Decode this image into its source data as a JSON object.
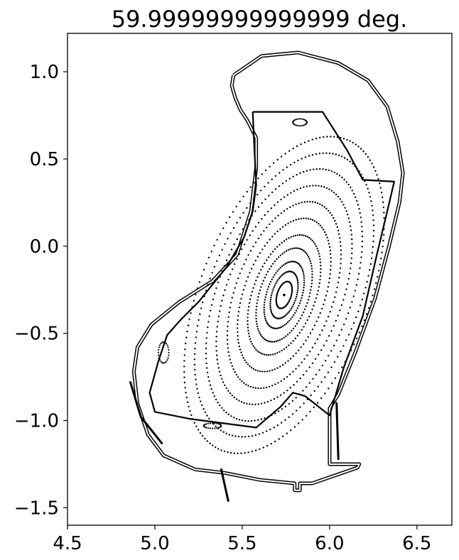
{
  "chart_data": {
    "type": "scatter",
    "title": "59.99999999999999 deg.",
    "xlabel": "",
    "ylabel": "",
    "xlim": [
      4.5,
      6.7
    ],
    "ylim": [
      -1.6,
      1.22
    ],
    "grid": false,
    "legend": "none",
    "x_ticks": [
      {
        "value": 4.5,
        "label": "4.5"
      },
      {
        "value": 5.0,
        "label": "5.0"
      },
      {
        "value": 5.5,
        "label": "5.5"
      },
      {
        "value": 6.0,
        "label": "6.0"
      },
      {
        "value": 6.5,
        "label": "6.5"
      }
    ],
    "y_ticks": [
      {
        "value": 1.0,
        "label": "1.0"
      },
      {
        "value": 0.5,
        "label": "0.5"
      },
      {
        "value": 0.0,
        "label": "0.0"
      },
      {
        "value": -0.5,
        "label": "−0.5"
      },
      {
        "value": -1.0,
        "label": "−1.0"
      },
      {
        "value": -1.5,
        "label": "−1.5"
      }
    ],
    "magnetic_axis": {
      "R": 5.74,
      "Z": -0.28
    },
    "flux_surfaces": [
      {
        "a": 0.04,
        "kappa": 2.0,
        "tilt_deg": 18,
        "points": 60
      },
      {
        "a": 0.07,
        "kappa": 2.0,
        "tilt_deg": 18,
        "points": 70
      },
      {
        "a": 0.1,
        "kappa": 2.0,
        "tilt_deg": 19,
        "points": 80
      },
      {
        "a": 0.14,
        "kappa": 2.0,
        "tilt_deg": 19,
        "points": 90
      },
      {
        "a": 0.18,
        "kappa": 2.0,
        "tilt_deg": 20,
        "points": 100
      },
      {
        "a": 0.23,
        "kappa": 2.0,
        "tilt_deg": 20,
        "points": 110
      },
      {
        "a": 0.28,
        "kappa": 2.0,
        "tilt_deg": 20,
        "points": 120
      },
      {
        "a": 0.33,
        "kappa": 2.0,
        "tilt_deg": 21,
        "points": 130
      },
      {
        "a": 0.38,
        "kappa": 2.0,
        "tilt_deg": 21,
        "points": 140
      },
      {
        "a": 0.43,
        "kappa": 2.0,
        "tilt_deg": 22,
        "points": 150
      },
      {
        "a": 0.48,
        "kappa": 2.0,
        "tilt_deg": 22,
        "points": 160
      }
    ],
    "islands": [
      {
        "R": 5.83,
        "Z": 0.71,
        "a": 0.04,
        "b": 0.02
      },
      {
        "R": 5.05,
        "Z": -0.61,
        "a": 0.03,
        "b": 0.06
      },
      {
        "R": 5.33,
        "Z": -1.03,
        "a": 0.05,
        "b": 0.015
      }
    ],
    "boundary": [
      [
        5.45,
        0.98
      ],
      [
        5.61,
        1.09
      ],
      [
        5.82,
        1.11
      ],
      [
        6.05,
        1.05
      ],
      [
        6.22,
        0.95
      ],
      [
        6.33,
        0.8
      ],
      [
        6.39,
        0.6
      ],
      [
        6.42,
        0.42
      ],
      [
        6.4,
        0.25
      ],
      [
        6.34,
        0.0
      ],
      [
        6.26,
        -0.3
      ],
      [
        6.15,
        -0.6
      ],
      [
        6.05,
        -0.85
      ],
      [
        6.0,
        -0.93
      ],
      [
        6.0,
        -1.25
      ],
      [
        6.17,
        -1.25
      ],
      [
        6.16,
        -1.27
      ],
      [
        5.9,
        -1.36
      ],
      [
        5.83,
        -1.36
      ],
      [
        5.83,
        -1.4
      ],
      [
        5.8,
        -1.4
      ],
      [
        5.8,
        -1.36
      ],
      [
        5.6,
        -1.34
      ],
      [
        5.4,
        -1.3
      ],
      [
        5.23,
        -1.28
      ],
      [
        5.05,
        -1.2
      ],
      [
        4.96,
        -1.08
      ],
      [
        4.9,
        -0.9
      ],
      [
        4.88,
        -0.72
      ],
      [
        4.9,
        -0.58
      ],
      [
        4.98,
        -0.45
      ],
      [
        5.14,
        -0.32
      ],
      [
        5.33,
        -0.2
      ],
      [
        5.47,
        -0.05
      ],
      [
        5.55,
        0.2
      ],
      [
        5.58,
        0.45
      ],
      [
        5.58,
        0.62
      ],
      [
        5.53,
        0.72
      ],
      [
        5.49,
        0.78
      ],
      [
        5.46,
        0.85
      ],
      [
        5.44,
        0.92
      ],
      [
        5.45,
        0.98
      ]
    ],
    "wall": [
      [
        5.56,
        0.77
      ],
      [
        5.96,
        0.77
      ],
      [
        6.1,
        0.55
      ],
      [
        6.19,
        0.38
      ],
      [
        6.37,
        0.37
      ],
      [
        6.33,
        0.2
      ],
      [
        6.27,
        -0.05
      ],
      [
        6.19,
        -0.4
      ],
      [
        6.08,
        -0.7
      ],
      [
        6.0,
        -0.97
      ],
      [
        5.86,
        -0.86
      ],
      [
        5.79,
        -0.84
      ],
      [
        5.72,
        -0.92
      ],
      [
        5.58,
        -1.04
      ],
      [
        5.2,
        -0.99
      ],
      [
        5.0,
        -0.95
      ],
      [
        4.97,
        -0.84
      ],
      [
        5.02,
        -0.66
      ],
      [
        5.07,
        -0.51
      ],
      [
        5.15,
        -0.42
      ],
      [
        5.25,
        -0.32
      ],
      [
        5.41,
        -0.12
      ],
      [
        5.51,
        0.05
      ],
      [
        5.56,
        0.2
      ],
      [
        5.58,
        0.35
      ],
      [
        5.57,
        0.55
      ],
      [
        5.56,
        0.77
      ]
    ],
    "divertor_legs": [
      [
        [
          5.38,
          -1.28
        ],
        [
          5.42,
          -1.46
        ]
      ],
      [
        [
          6.04,
          -0.9
        ],
        [
          6.05,
          -1.22
        ]
      ],
      [
        [
          4.86,
          -0.78
        ],
        [
          4.92,
          -0.98
        ],
        [
          5.04,
          -1.13
        ]
      ]
    ]
  }
}
